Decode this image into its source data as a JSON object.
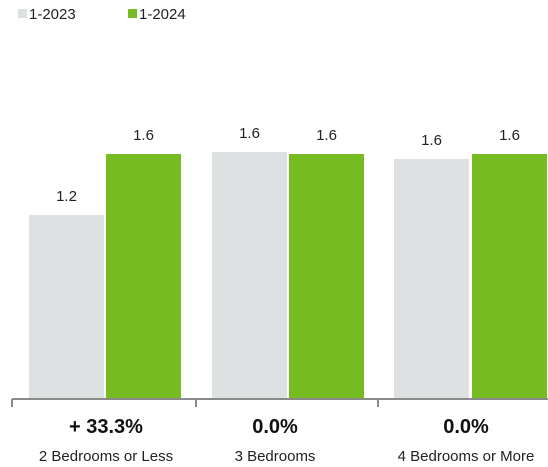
{
  "chart_data": {
    "type": "bar",
    "categories": [
      "2 Bedrooms or Less",
      "3 Bedrooms",
      "4 Bedrooms or More"
    ],
    "series": [
      {
        "name": "1-2023",
        "values": [
          1.2,
          1.6,
          1.6
        ],
        "color": "#dde1e1",
        "labels": [
          "1.2",
          "1.6",
          "1.6"
        ]
      },
      {
        "name": "1-2024",
        "values": [
          1.6,
          1.6,
          1.6
        ],
        "color": "#76bc21",
        "labels": [
          "1.6",
          "1.6",
          "1.6"
        ]
      }
    ],
    "changes": [
      "+ 33.3%",
      "0.0%",
      "0.0%"
    ],
    "axis_color": "#8a8a8a",
    "title": "",
    "xlabel": "",
    "ylabel": "",
    "legend_position": "top-left"
  }
}
